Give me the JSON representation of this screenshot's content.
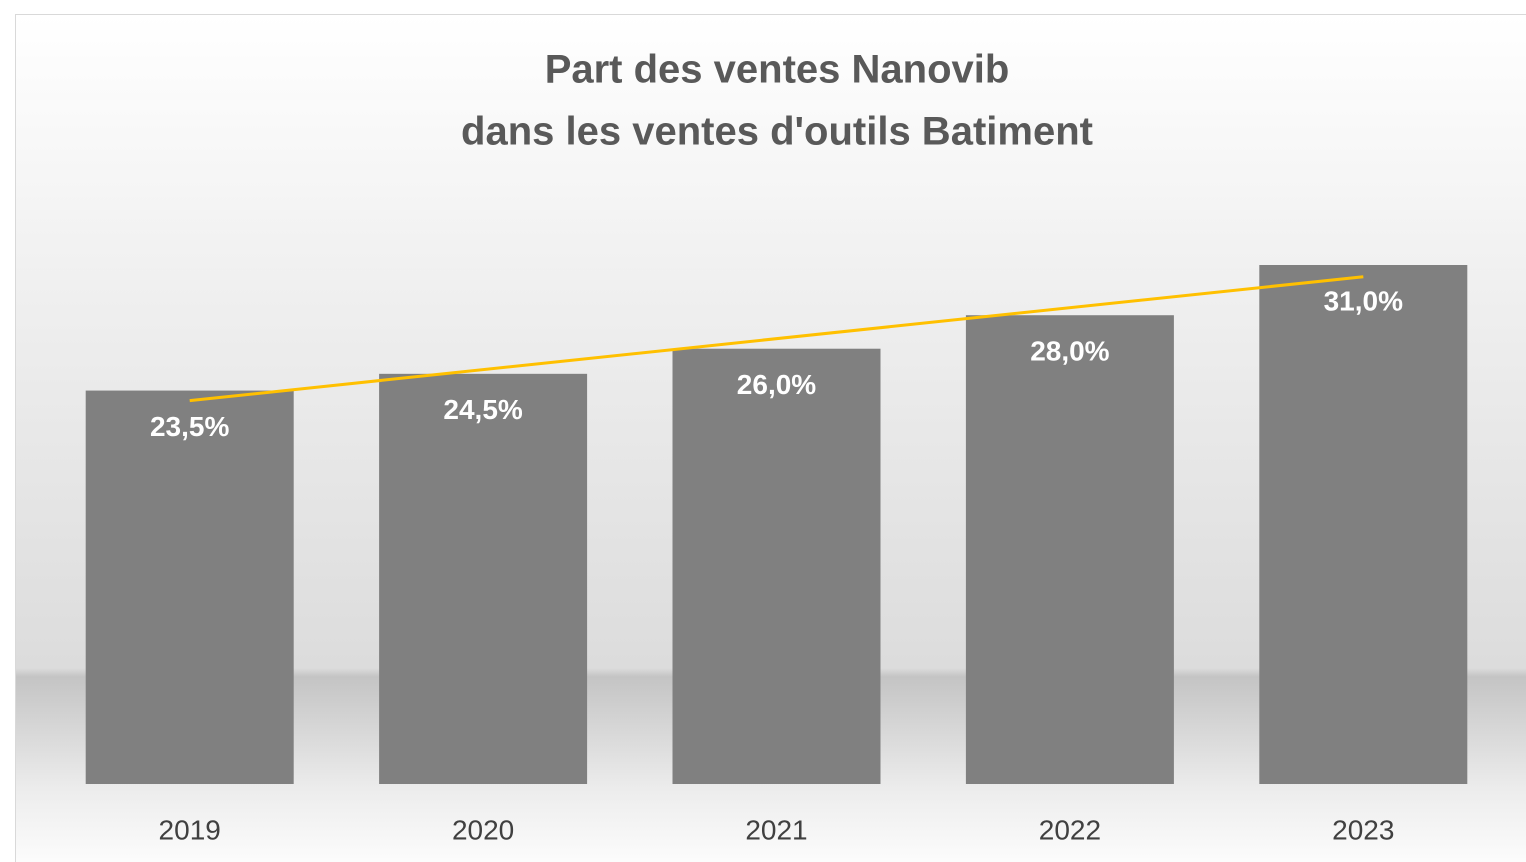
{
  "chart_data": {
    "type": "bar",
    "title": [
      "Part des ventes Nanovib",
      "dans les ventes d'outils Batiment"
    ],
    "categories": [
      "2019",
      "2020",
      "2021",
      "2022",
      "2023"
    ],
    "values": [
      23.5,
      24.5,
      26.0,
      28.0,
      31.0
    ],
    "value_labels": [
      "23,5%",
      "24,5%",
      "26,0%",
      "28,0%",
      "31,0%"
    ],
    "color": "#808080",
    "trendline": "linear",
    "trendline_color": "#ffc000"
  }
}
